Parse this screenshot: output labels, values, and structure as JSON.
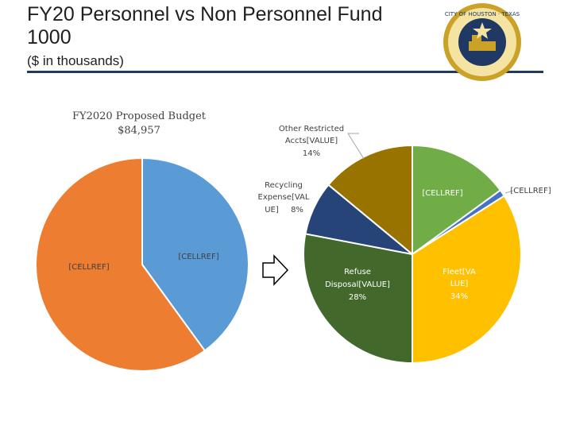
{
  "header": {
    "title": "FY20 Personnel vs Non Personnel Fund 1000",
    "subtitle": "($ in thousands)"
  },
  "logo": {
    "seal_text": "CITY OF HOUSTON · TEXAS",
    "colors": {
      "ring": "#c9a227",
      "center": "#1f3864"
    }
  },
  "arrow": {
    "icon": "right-arrow-icon"
  },
  "chart_data": [
    {
      "type": "pie",
      "title": "FY2020 Proposed Budget",
      "subtitle": "$84,957",
      "slices": [
        {
          "label": "[CELLREF]",
          "value": 40,
          "color": "#5b9bd5"
        },
        {
          "label": "[CELLREF]",
          "value": 60,
          "color": "#ed7d31"
        }
      ]
    },
    {
      "type": "pie",
      "slices": [
        {
          "label": "[CELLREF]",
          "value": 15,
          "color": "#70ad47",
          "pct": ""
        },
        {
          "label": "[CELLREF]",
          "value": 1,
          "color": "#4472c4",
          "pct": ""
        },
        {
          "label": "Fleet[VALUE]",
          "value": 34,
          "color": "#ffc000",
          "pct": "34%"
        },
        {
          "label": "Refuse Disposal[VALUE]",
          "value": 28,
          "color": "#43682b",
          "pct": "28%"
        },
        {
          "label": "Recycling Expense[VALUE]",
          "value": 8,
          "color": "#264478",
          "pct": "8%"
        },
        {
          "label": "Other Restricted Accts[VALUE]",
          "value": 14,
          "color": "#997300",
          "pct": "14%"
        }
      ],
      "label_lines": {
        "s0": "[CELLREF]",
        "s1": "[CELLREF]",
        "s2a": "Fleet[VA",
        "s2b": "LUE]",
        "s2c": "34%",
        "s3a": "Refuse",
        "s3b": "Disposal[VALUE]",
        "s3c": "28%",
        "s4a": "Recycling",
        "s4b": "Expense[VAL",
        "s4c": "UE]",
        "s4d": "8%",
        "s5a": "Other Restricted",
        "s5b": "Accts[VALUE]",
        "s5c": "14%"
      }
    }
  ]
}
